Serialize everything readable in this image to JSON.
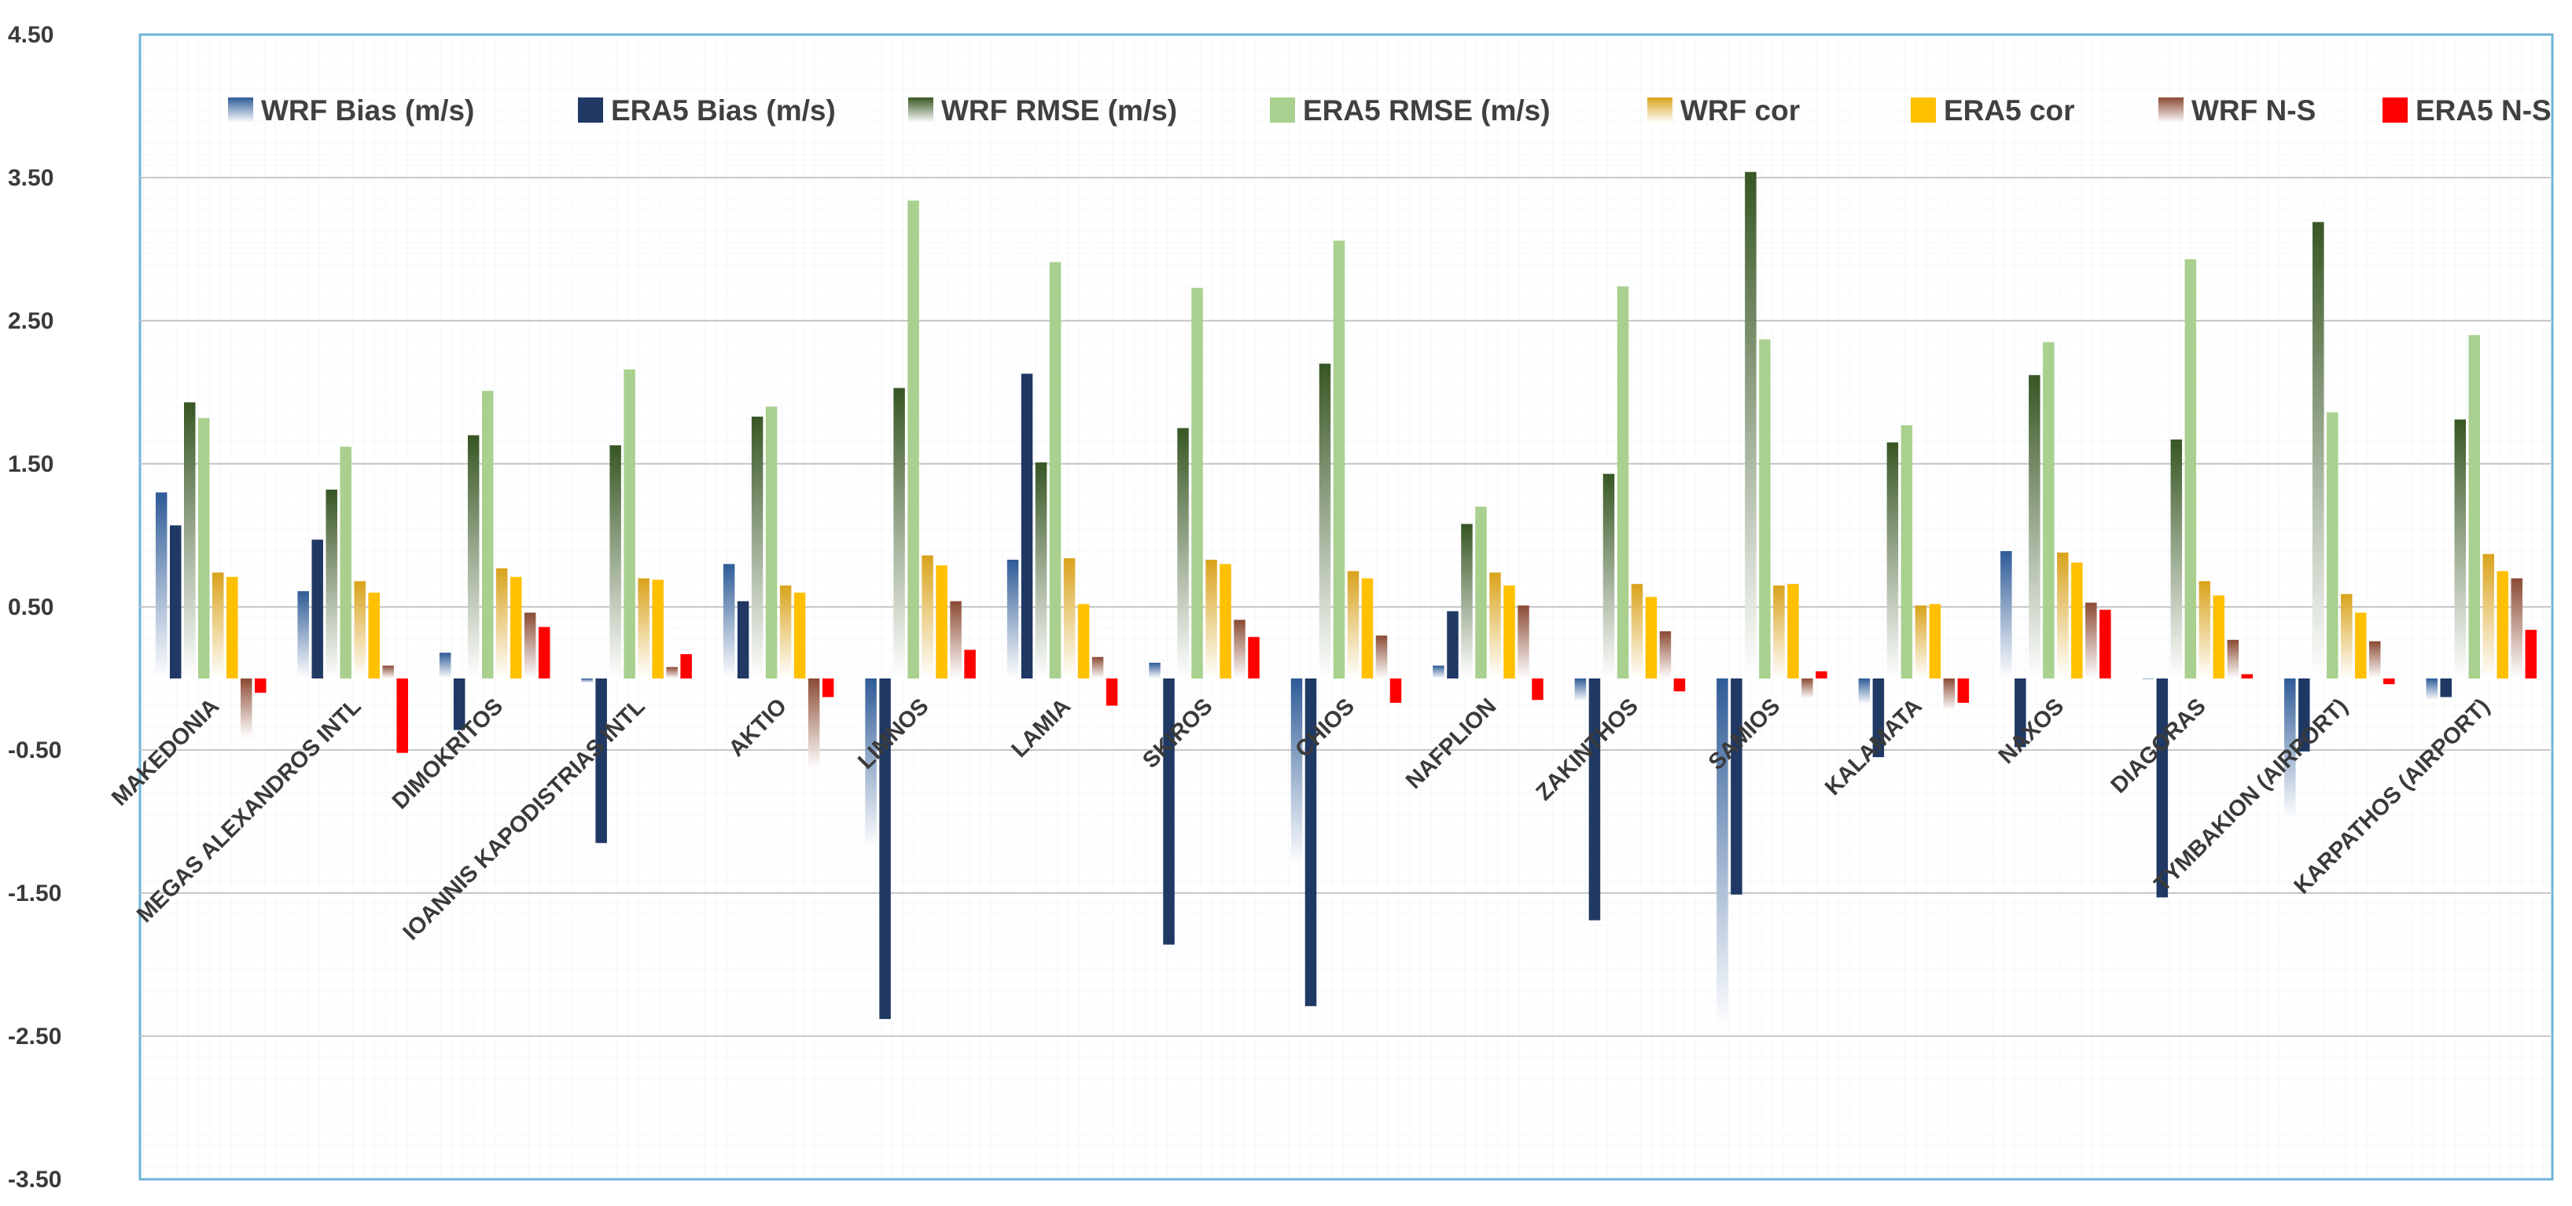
{
  "chart_data": {
    "type": "bar",
    "title": "",
    "xlabel": "",
    "ylabel": "",
    "ylim": [
      -3.5,
      4.5
    ],
    "yticks": [
      "4.50",
      "3.50",
      "2.50",
      "1.50",
      "0.50",
      "-0.50",
      "-1.50",
      "-2.50",
      "-3.50"
    ],
    "ytick_values": [
      4.5,
      3.5,
      2.5,
      1.5,
      0.5,
      -0.5,
      -1.5,
      -2.5,
      -3.5
    ],
    "grid": true,
    "legend_position": "top",
    "categories": [
      "MAKEDONIA",
      "MEGAS ALEXANDROS INTL",
      "DIMOKRITOS",
      "IOANNIS KAPODISTRIAS INTL",
      "AKTIO",
      "LIMNOS",
      "LAMIA",
      "SKIROS",
      "CHIOS",
      "NAFPLION",
      "ZAKINTHOS",
      "SAMIOS",
      "KALAMATA",
      "NAXOS",
      "DIAGORAS",
      "TYMBAKION (AIRPORT)",
      "KARPATHOS (AIRPORT)"
    ],
    "series": [
      {
        "name": "WRF Bias (m/s)",
        "color": "#2e5b97",
        "gradient": true,
        "values": [
          1.3,
          0.61,
          0.18,
          -0.03,
          0.8,
          -1.19,
          0.83,
          0.11,
          -1.3,
          0.09,
          -0.16,
          -2.45,
          -0.18,
          0.89,
          0.0,
          -0.98,
          -0.15
        ]
      },
      {
        "name": "ERA5 Bias (m/s)",
        "color": "#1f3864",
        "gradient": false,
        "values": [
          1.07,
          0.97,
          -0.36,
          -1.15,
          0.54,
          -2.38,
          2.13,
          -1.86,
          -2.29,
          0.47,
          -1.69,
          -1.51,
          -0.55,
          -0.48,
          -1.53,
          -0.51,
          -0.13
        ]
      },
      {
        "name": "WRF RMSE (m/s)",
        "color": "#375623",
        "gradient": true,
        "values": [
          1.93,
          1.32,
          1.7,
          1.63,
          1.83,
          2.03,
          1.51,
          1.75,
          2.2,
          1.08,
          1.43,
          3.54,
          1.65,
          2.12,
          1.67,
          3.19,
          1.81
        ]
      },
      {
        "name": "ERA5 RMSE (m/s)",
        "color": "#a9d08e",
        "gradient": false,
        "values": [
          1.82,
          1.62,
          2.01,
          2.16,
          1.9,
          3.34,
          2.91,
          2.73,
          3.06,
          1.2,
          2.74,
          2.37,
          1.77,
          2.35,
          2.93,
          1.86,
          2.4
        ]
      },
      {
        "name": "WRF cor",
        "color": "#d9a21b",
        "gradient": true,
        "values": [
          0.74,
          0.68,
          0.77,
          0.7,
          0.65,
          0.86,
          0.84,
          0.83,
          0.75,
          0.74,
          0.66,
          0.65,
          0.51,
          0.88,
          0.68,
          0.59,
          0.87
        ]
      },
      {
        "name": "ERA5 cor",
        "color": "#ffc000",
        "gradient": false,
        "values": [
          0.71,
          0.6,
          0.71,
          0.69,
          0.6,
          0.79,
          0.52,
          0.8,
          0.7,
          0.65,
          0.57,
          0.66,
          0.52,
          0.81,
          0.58,
          0.46,
          0.75
        ]
      },
      {
        "name": "WRF N-S",
        "color": "#8b4a33",
        "gradient": true,
        "values": [
          -0.41,
          0.09,
          0.46,
          0.08,
          -0.63,
          0.54,
          0.15,
          0.41,
          0.3,
          0.51,
          0.33,
          -0.14,
          -0.22,
          0.53,
          0.27,
          0.26,
          0.7
        ]
      },
      {
        "name": "ERA5 N-S",
        "color": "#ff0000",
        "gradient": false,
        "values": [
          -0.1,
          -0.52,
          0.36,
          0.17,
          -0.13,
          0.2,
          -0.19,
          0.29,
          -0.17,
          -0.15,
          -0.09,
          0.05,
          -0.17,
          0.48,
          0.03,
          -0.04,
          0.34
        ]
      }
    ]
  }
}
